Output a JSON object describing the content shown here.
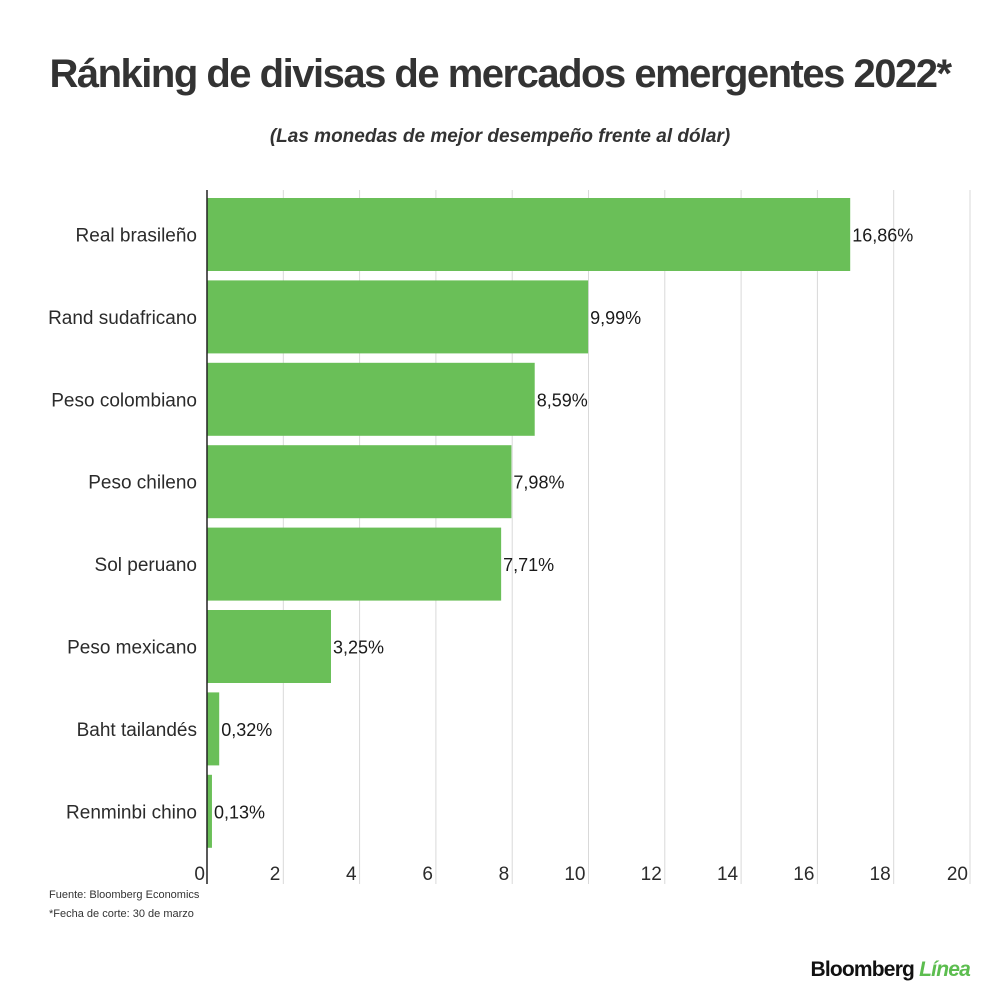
{
  "title": "Ránking de divisas de mercados emergentes 2022*",
  "subtitle": "(Las monedas de mejor desempeño frente al dólar)",
  "footnotes": {
    "source": "Fuente: Bloomberg Economics",
    "cutoff": "*Fecha de corte: 30 de marzo"
  },
  "brand": {
    "name": "Bloomberg",
    "sub": "Línea",
    "accent_color": "#5cbd4f"
  },
  "colors": {
    "bar": "#6abf58",
    "grid": "#d9d9d9",
    "axis": "#222222"
  },
  "chart_data": {
    "type": "bar",
    "orientation": "horizontal",
    "title": "Ránking de divisas de mercados emergentes 2022*",
    "subtitle": "(Las monedas de mejor desempeño frente al dólar)",
    "xlabel": "",
    "ylabel": "",
    "categories": [
      "Real brasileño",
      "Rand sudafricano",
      "Peso colombiano",
      "Peso chileno",
      "Sol peruano",
      "Peso mexicano",
      "Baht tailandés",
      "Renminbi chino"
    ],
    "values": [
      16.86,
      9.99,
      8.59,
      7.98,
      7.71,
      3.25,
      0.32,
      0.13
    ],
    "value_labels": [
      "16,86%",
      "9,99%",
      "8,59%",
      "7,98%",
      "7,71%",
      "3,25%",
      "0,32%",
      "0,13%"
    ],
    "xlim": [
      0,
      20
    ],
    "x_ticks": [
      0,
      2,
      4,
      6,
      8,
      10,
      12,
      14,
      16,
      18,
      20
    ],
    "grid": true,
    "legend": "none"
  }
}
